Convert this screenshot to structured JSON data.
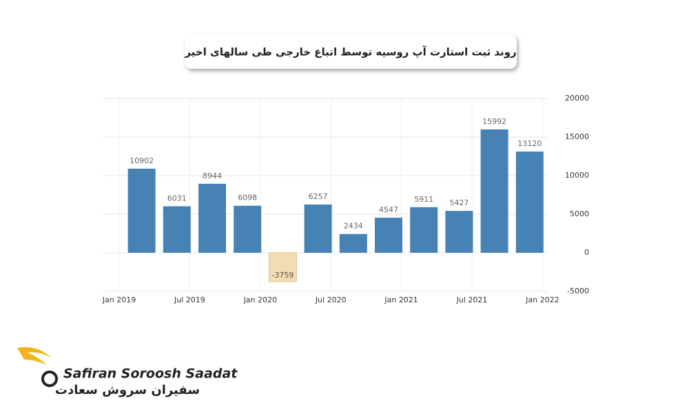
{
  "chart_data": {
    "type": "bar",
    "title": "روند ثبت استارت آپ روسیه توسط اتباع خارجی طی سالهای اخیر",
    "values": [
      10902,
      6031,
      8944,
      6098,
      -3759,
      6257,
      2434,
      4547,
      5911,
      5427,
      15992,
      13120
    ],
    "color": "#4682b4",
    "negative_color": "#f2dcb4",
    "x_labels": [
      "Jan 2019",
      "Jul 2019",
      "Jan 2020",
      "Jul 2020",
      "Jan 2021",
      "Jul 2021",
      "Jan 2022"
    ],
    "ylim": [
      -5000,
      20000
    ],
    "yticks": [
      -5000,
      0,
      5000,
      10000,
      15000,
      20000
    ],
    "grid": true
  },
  "brand": {
    "name": "Safiran Soroosh Saadat",
    "name_fa": "سفیران سروش سعادت"
  }
}
